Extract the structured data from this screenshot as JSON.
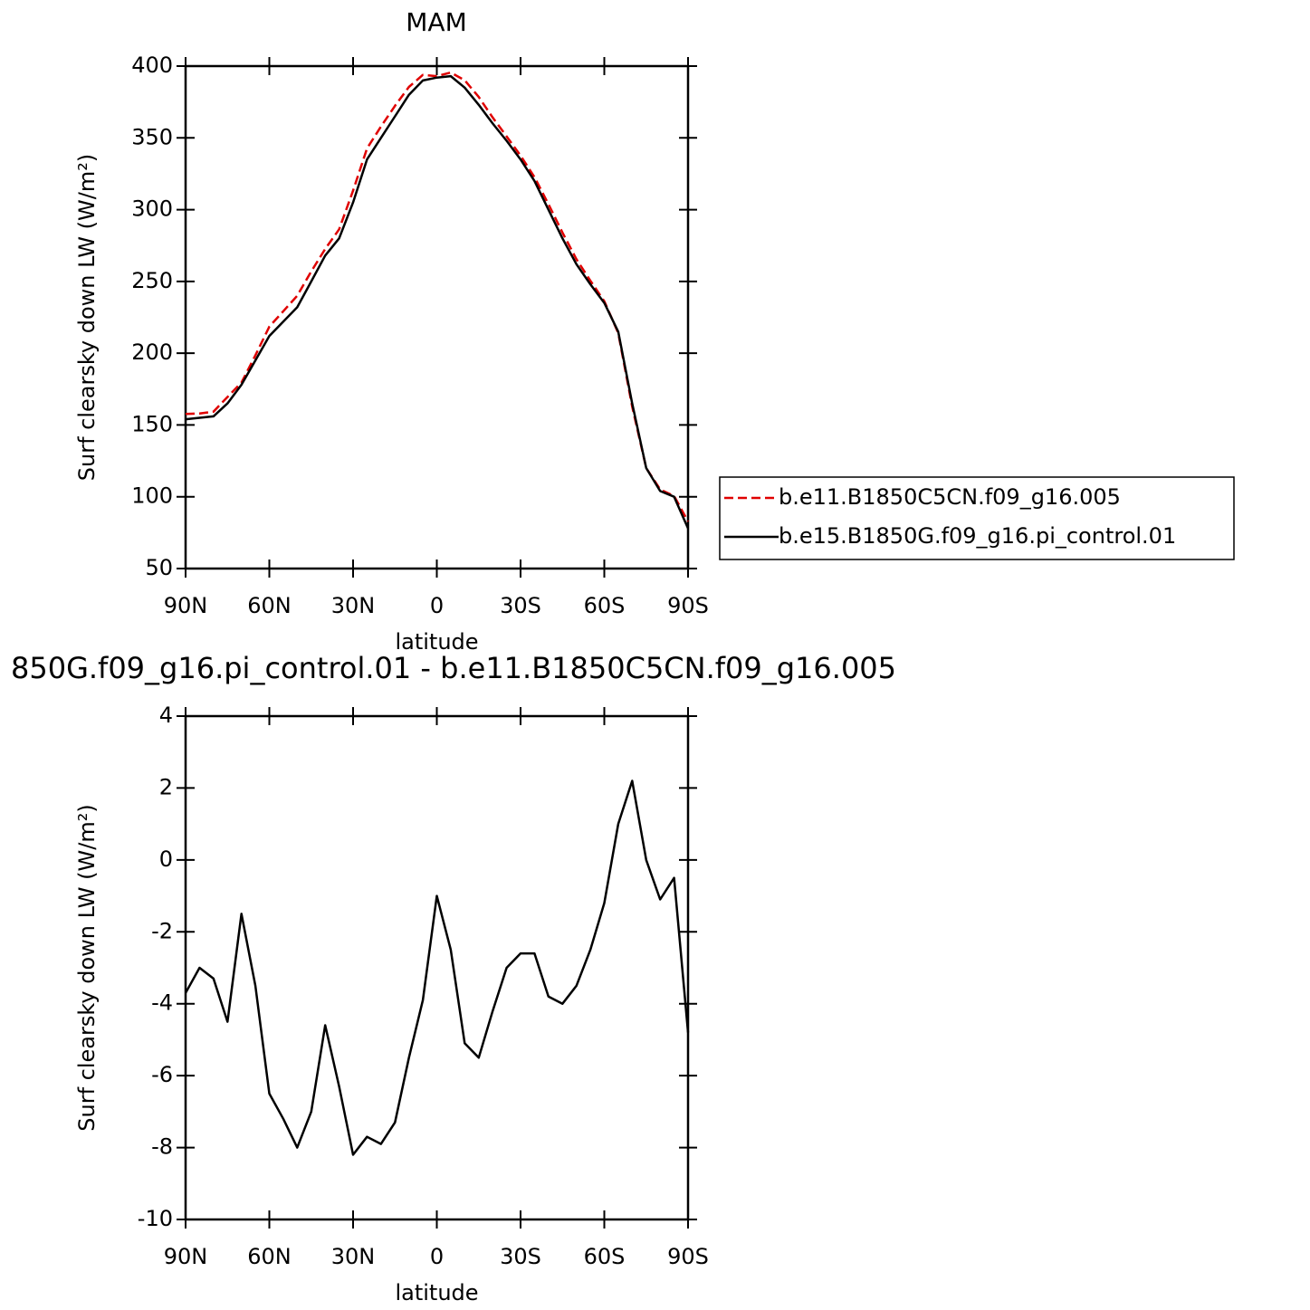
{
  "chart_data": [
    {
      "type": "line",
      "title": "MAM",
      "xlabel": "latitude",
      "ylabel": "Surf clearsky down LW (W/m²)",
      "x": [
        90,
        85,
        80,
        75,
        70,
        65,
        60,
        55,
        50,
        45,
        40,
        35,
        30,
        25,
        20,
        15,
        10,
        5,
        0,
        -5,
        -10,
        -15,
        -20,
        -25,
        -30,
        -35,
        -40,
        -45,
        -50,
        -55,
        -60,
        -65,
        -70,
        -75,
        -80,
        -85,
        -90
      ],
      "series": [
        {
          "name": "b.e11.B1850C5CN.f09_g16.005",
          "color": "#e00000",
          "dash": true,
          "values": [
            157.7,
            158,
            159.3,
            169.5,
            179.5,
            198.5,
            218.5,
            229.2,
            240,
            257,
            272.6,
            286.3,
            313.2,
            342.7,
            357.9,
            372.3,
            385.5,
            393.9,
            393,
            395.5,
            390.1,
            378.5,
            364.2,
            351,
            337.6,
            322.6,
            303.8,
            284,
            265.5,
            250.5,
            236.2,
            214,
            162.8,
            120,
            105.1,
            100.5,
            82.8
          ]
        },
        {
          "name": "b.e15.B1850G.f09_g16.pi_control.01",
          "color": "#000000",
          "dash": false,
          "values": [
            154,
            155,
            156,
            165,
            178,
            195,
            212,
            222,
            232,
            250,
            268,
            280,
            305,
            335,
            350,
            365,
            380,
            390,
            392,
            393,
            385,
            373,
            360,
            348,
            335,
            320,
            300,
            280,
            262,
            248,
            235,
            215,
            165,
            120,
            104,
            100,
            78
          ]
        }
      ],
      "xlim": [
        90,
        -90
      ],
      "xticks": [
        {
          "value": 90,
          "label": "90N"
        },
        {
          "value": 60,
          "label": "60N"
        },
        {
          "value": 30,
          "label": "30N"
        },
        0,
        {
          "value": -30,
          "label": "30S"
        },
        {
          "value": -60,
          "label": "60S"
        },
        {
          "value": -90,
          "label": "90S"
        }
      ],
      "ylim": [
        50,
        400
      ],
      "yticks": [
        50,
        100,
        150,
        200,
        250,
        300,
        350,
        400
      ]
    },
    {
      "type": "line",
      "title": "850G.f09_g16.pi_control.01 - b.e11.B1850C5CN.f09_g16.005",
      "xlabel": "latitude",
      "ylabel": "Surf clearsky down LW (W/m²)",
      "x": [
        90,
        85,
        80,
        75,
        70,
        65,
        60,
        55,
        50,
        45,
        40,
        35,
        30,
        25,
        20,
        15,
        10,
        5,
        0,
        -5,
        -10,
        -15,
        -20,
        -25,
        -30,
        -35,
        -40,
        -45,
        -50,
        -55,
        -60,
        -65,
        -70,
        -75,
        -80,
        -85,
        -90
      ],
      "series": [
        {
          "color": "#000000",
          "values": [
            -3.7,
            -3.0,
            -3.3,
            -4.5,
            -1.5,
            -3.5,
            -6.5,
            -7.2,
            -8.0,
            -7.0,
            -4.6,
            -6.3,
            -8.2,
            -7.7,
            -7.9,
            -7.3,
            -5.5,
            -3.9,
            -1.0,
            -2.5,
            -5.1,
            -5.5,
            -4.2,
            -3.0,
            -2.6,
            -2.6,
            -3.8,
            -4.0,
            -3.5,
            -2.5,
            -1.2,
            1.0,
            2.2,
            0.0,
            -1.1,
            -0.5,
            -4.8
          ]
        }
      ],
      "xlim": [
        90,
        -90
      ],
      "xticks": [
        {
          "value": 90,
          "label": "90N"
        },
        {
          "value": 60,
          "label": "60N"
        },
        {
          "value": 30,
          "label": "30N"
        },
        0,
        {
          "value": -30,
          "label": "30S"
        },
        {
          "value": -60,
          "label": "60S"
        },
        {
          "value": -90,
          "label": "90S"
        }
      ],
      "ylim": [
        -10,
        4
      ],
      "yticks": [
        -10,
        -8,
        -6,
        -4,
        -2,
        0,
        2,
        4
      ]
    }
  ]
}
